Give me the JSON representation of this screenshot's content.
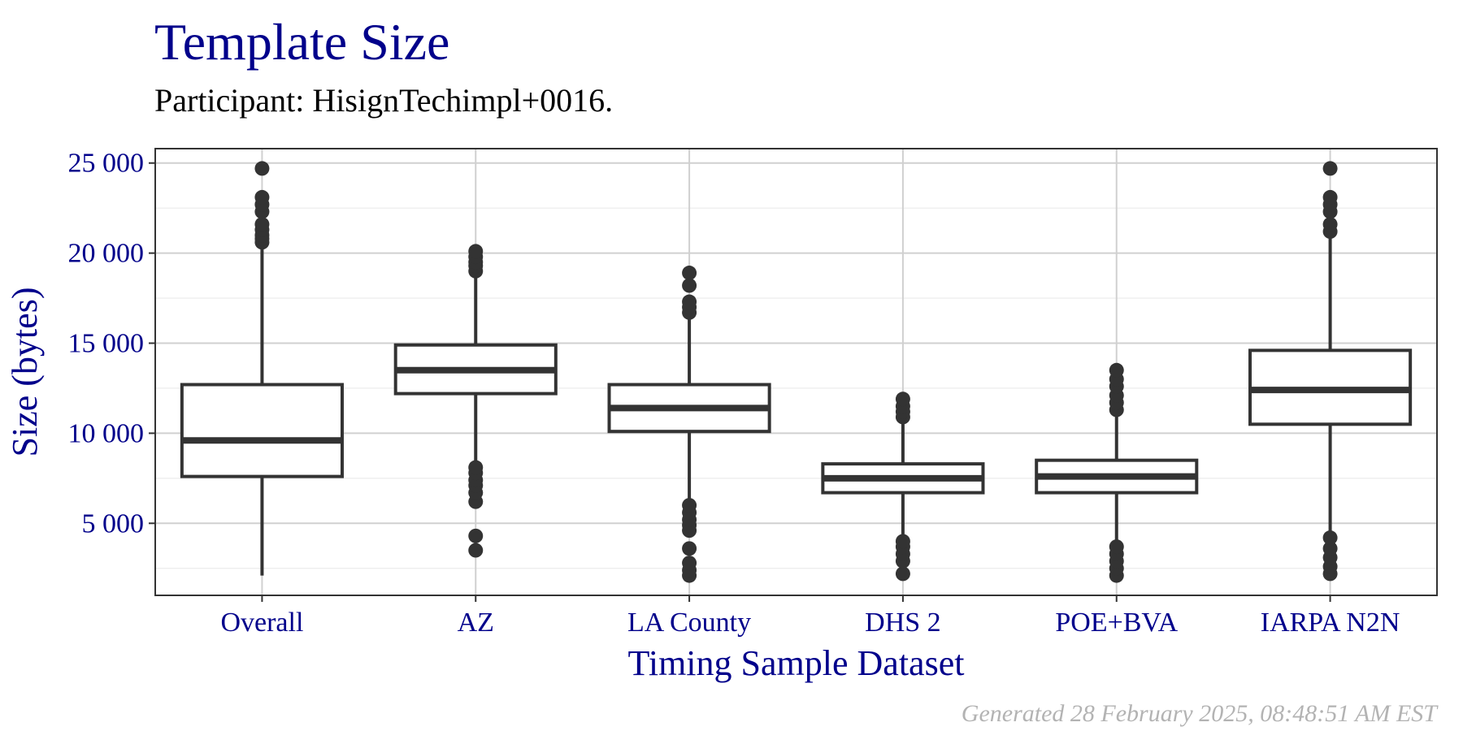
{
  "footer": "Generated 28 February 2025, 08:48:51 AM EST",
  "chart_data": {
    "type": "box",
    "title": "Template Size",
    "subtitle": "Participant: HisignTechimpl+0016.",
    "xlabel": "Timing Sample Dataset",
    "ylabel": "Size (bytes)",
    "ylim": [
      1000,
      25800
    ],
    "yticks": [
      5000,
      10000,
      15000,
      20000,
      25000
    ],
    "ytick_labels": [
      "5 000",
      "10 000",
      "15 000",
      "20 000",
      "25 000"
    ],
    "grid": true,
    "colors": {
      "text": "#00008b",
      "box": "#333333",
      "grid_major": "#d0d0d0",
      "grid_minor": "#ebebeb",
      "footer": "#b3b3b3"
    },
    "categories": [
      "Overall",
      "AZ",
      "LA County",
      "DHS 2",
      "POE+BVA",
      "IARPA N2N"
    ],
    "boxes": [
      {
        "name": "Overall",
        "whisker_low": 2100,
        "q1": 7600,
        "median": 9600,
        "q3": 12700,
        "whisker_high": 20500,
        "outliers": [
          20600,
          20800,
          21000,
          21300,
          21600,
          22300,
          22700,
          23100,
          24700
        ]
      },
      {
        "name": "AZ",
        "whisker_low": 8200,
        "q1": 12200,
        "median": 13500,
        "q3": 14900,
        "whisker_high": 18900,
        "outliers": [
          3500,
          4300,
          6200,
          6700,
          7100,
          7400,
          7800,
          8100,
          19000,
          19300,
          19500,
          19800,
          20100
        ]
      },
      {
        "name": "LA County",
        "whisker_low": 6200,
        "q1": 10100,
        "median": 11400,
        "q3": 12700,
        "whisker_high": 16500,
        "outliers": [
          2100,
          2400,
          2800,
          3600,
          4600,
          4900,
          5200,
          5600,
          6000,
          16700,
          17000,
          17300,
          18200,
          18900
        ]
      },
      {
        "name": "DHS 2",
        "whisker_low": 4100,
        "q1": 6700,
        "median": 7500,
        "q3": 8300,
        "whisker_high": 10800,
        "outliers": [
          2200,
          2900,
          3300,
          3700,
          4000,
          10900,
          11200,
          11500,
          11900
        ]
      },
      {
        "name": "POE+BVA",
        "whisker_low": 4000,
        "q1": 6700,
        "median": 7600,
        "q3": 8500,
        "whisker_high": 11100,
        "outliers": [
          2100,
          2500,
          2900,
          3300,
          3700,
          11300,
          11700,
          12100,
          12600,
          13000,
          13500
        ]
      },
      {
        "name": "IARPA N2N",
        "whisker_low": 4400,
        "q1": 10500,
        "median": 12400,
        "q3": 14600,
        "whisker_high": 21000,
        "outliers": [
          2200,
          2600,
          3100,
          3600,
          4200,
          21200,
          21600,
          22300,
          22700,
          23100,
          24700
        ]
      }
    ]
  }
}
